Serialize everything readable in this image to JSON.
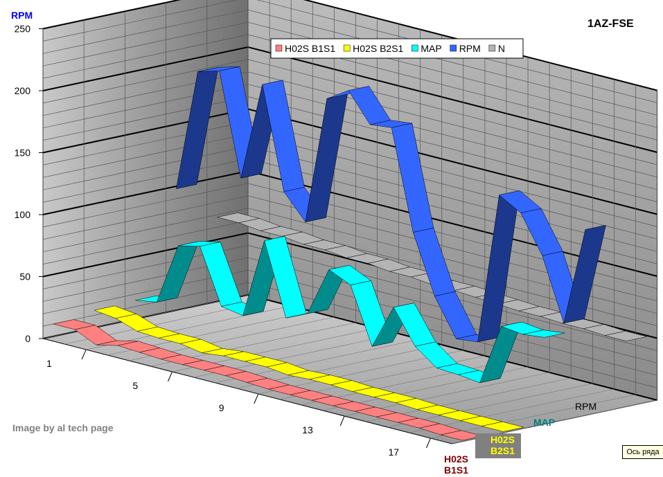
{
  "chart_data": {
    "type": "line",
    "style": "3d-ribbon",
    "title": "1AZ-FSE",
    "ylabel": "RPM",
    "ylim": [
      0,
      250
    ],
    "yticks": [
      0,
      50,
      100,
      150,
      200,
      250
    ],
    "x": [
      1,
      2,
      3,
      4,
      5,
      6,
      7,
      8,
      9,
      10,
      11,
      12,
      13,
      14,
      15,
      16,
      17,
      18,
      19,
      20
    ],
    "xtick_labels": [
      "1",
      "5",
      "9",
      "13",
      "17"
    ],
    "xtick_values": [
      1,
      5,
      9,
      13,
      17
    ],
    "series": [
      {
        "name": "H02S B1S1",
        "color": "#ff8080",
        "depth_label": "H02S\nB1S1",
        "values": [
          10,
          10,
          2,
          6,
          5,
          4,
          4,
          4,
          4,
          3,
          2,
          2,
          2,
          2,
          2,
          2,
          2,
          2,
          1,
          1
        ]
      },
      {
        "name": "H02S B2S1",
        "color": "#ffff00",
        "depth_label": "H02S\nB2S1",
        "values": [
          14,
          12,
          6,
          5,
          5,
          2,
          4,
          4,
          4,
          2,
          3,
          3,
          2,
          2,
          2,
          1,
          1,
          1,
          1,
          1
        ]
      },
      {
        "name": "MAP",
        "color": "#00ffff",
        "depth_label": "MAP",
        "values": [
          15,
          18,
          68,
          72,
          28,
          25,
          90,
          32,
          40,
          80,
          72,
          27,
          63,
          36,
          23,
          22,
          20,
          70,
          68,
          70
        ]
      },
      {
        "name": "RPM",
        "color": "#3366ff",
        "depth_label": "RPM",
        "values": [
          98,
          197,
          202,
          120,
          200,
          118,
          98,
          202,
          213,
          190,
          192,
          112,
          65,
          35,
          37,
          160,
          150,
          120,
          70,
          150
        ]
      },
      {
        "name": "N",
        "color": "#b4b4b4",
        "depth_label": "",
        "values": [
          68,
          68,
          66,
          66,
          64,
          64,
          62,
          62,
          60,
          60,
          58,
          58,
          57,
          56,
          55,
          55,
          54,
          54,
          53,
          53
        ]
      }
    ],
    "legend": {
      "position": "top-right",
      "entries": [
        "H02S B1S1",
        "H02S B2S1",
        "MAP",
        "RPM",
        "N"
      ]
    },
    "grid": true,
    "ylabel_color": "#0000ff",
    "depth_label_colors": {
      "H02S B1S1": "#800000",
      "H02S B2S1": "#ffff00",
      "MAP": "#008080",
      "RPM": "#000000"
    }
  },
  "watermark_text": "Image by al tech page",
  "tooltip": "Ось ряда"
}
